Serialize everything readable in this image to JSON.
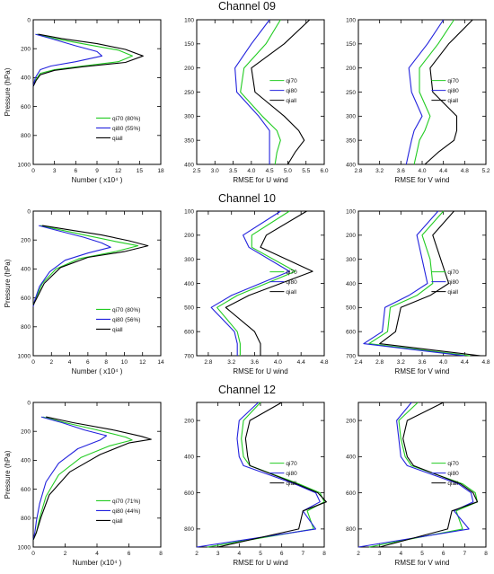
{
  "figure": {
    "rows": [
      {
        "title": "Channel 09"
      },
      {
        "title": "Channel 10"
      },
      {
        "title": "Channel 12"
      }
    ]
  },
  "colors": {
    "qi70": "#22cc22",
    "qi80": "#2222dd",
    "qiall": "#000000"
  },
  "chart_data": [
    {
      "type": "line",
      "title": "Channel 09",
      "xlabel": "Number ( x10⁴ )",
      "ylabel": "Pressure (hPa)",
      "xlim": [
        0,
        18
      ],
      "ylim": [
        1000,
        0
      ],
      "xticks": [
        0,
        3,
        6,
        9,
        12,
        15,
        18
      ],
      "yticks": [
        0,
        200,
        400,
        600,
        800,
        1000
      ],
      "series": [
        {
          "name": "qi70 (80%)",
          "color": "#22cc22",
          "x": [
            0.5,
            3,
            7.5,
            12,
            14,
            12,
            7,
            3,
            1,
            0.3,
            0
          ],
          "y": [
            100,
            130,
            170,
            210,
            250,
            290,
            320,
            345,
            370,
            420,
            460
          ]
        },
        {
          "name": "qi80 (55%)",
          "color": "#2222dd",
          "x": [
            0.3,
            2.5,
            6,
            9,
            9.7,
            6,
            2.5,
            1,
            0.3,
            0
          ],
          "y": [
            100,
            130,
            180,
            220,
            250,
            290,
            320,
            345,
            400,
            460
          ]
        },
        {
          "name": "qiall",
          "color": "#000000",
          "x": [
            0.7,
            4,
            9,
            13,
            15.5,
            13,
            7,
            3,
            1,
            0.4,
            0
          ],
          "y": [
            100,
            130,
            165,
            205,
            250,
            295,
            325,
            350,
            380,
            420,
            460
          ]
        }
      ]
    },
    {
      "type": "line",
      "xlabel": "RMSE for U wind",
      "ylabel": "",
      "xlim": [
        2.5,
        6.0
      ],
      "ylim": [
        400,
        100
      ],
      "xticks": [
        2.5,
        3.0,
        3.5,
        4.0,
        4.5,
        5.0,
        5.5,
        6.0
      ],
      "yticks": [
        100,
        150,
        200,
        250,
        300,
        350,
        400
      ],
      "series": [
        {
          "name": "qi70",
          "color": "#22cc22",
          "x": [
            4.8,
            4.4,
            3.8,
            3.7,
            4.3,
            4.7,
            4.8,
            4.7,
            4.65
          ],
          "y": [
            100,
            150,
            200,
            250,
            300,
            330,
            350,
            375,
            400
          ]
        },
        {
          "name": "qi80",
          "color": "#2222dd",
          "x": [
            4.5,
            4.0,
            3.55,
            3.6,
            4.2,
            4.5,
            4.5,
            4.5,
            4.5
          ],
          "y": [
            100,
            150,
            200,
            250,
            300,
            330,
            350,
            375,
            400
          ]
        },
        {
          "name": "qiall",
          "color": "#000000",
          "x": [
            5.6,
            4.9,
            4.0,
            4.1,
            4.9,
            5.3,
            5.45,
            5.2,
            5.0
          ],
          "y": [
            100,
            150,
            200,
            250,
            300,
            330,
            350,
            375,
            400
          ]
        }
      ]
    },
    {
      "type": "line",
      "xlabel": "RMSE for V wind",
      "ylabel": "",
      "xlim": [
        2.8,
        5.2
      ],
      "ylim": [
        400,
        100
      ],
      "xticks": [
        2.8,
        3.2,
        3.6,
        4.0,
        4.4,
        4.8,
        5.2
      ],
      "yticks": [
        100,
        150,
        200,
        250,
        300,
        350,
        400
      ],
      "series": [
        {
          "name": "qi70",
          "color": "#22cc22",
          "x": [
            4.6,
            4.3,
            3.95,
            3.95,
            4.15,
            4.05,
            3.95,
            3.9,
            3.85
          ],
          "y": [
            100,
            150,
            200,
            250,
            300,
            330,
            350,
            375,
            400
          ]
        },
        {
          "name": "qi80",
          "color": "#2222dd",
          "x": [
            4.4,
            4.1,
            3.75,
            3.8,
            4.0,
            3.85,
            3.8,
            3.75,
            3.7
          ],
          "y": [
            100,
            150,
            200,
            250,
            300,
            330,
            350,
            375,
            400
          ]
        },
        {
          "name": "qiall",
          "color": "#000000",
          "x": [
            4.95,
            4.5,
            4.15,
            4.2,
            4.65,
            4.65,
            4.6,
            4.3,
            4.05
          ],
          "y": [
            100,
            150,
            200,
            250,
            300,
            330,
            350,
            375,
            400
          ]
        }
      ]
    },
    {
      "type": "line",
      "title": "Channel 10",
      "xlabel": "Number ( x10⁴ )",
      "ylabel": "Pressure (hPa)",
      "xlim": [
        0,
        14
      ],
      "ylim": [
        1000,
        0
      ],
      "xticks": [
        0,
        2,
        4,
        6,
        8,
        10,
        12,
        14
      ],
      "yticks": [
        0,
        200,
        400,
        600,
        800,
        1000
      ],
      "series": [
        {
          "name": "qi70 (80%)",
          "color": "#22cc22",
          "x": [
            0.8,
            3,
            6,
            9,
            11.5,
            9,
            5,
            2.5,
            1,
            0.3,
            0
          ],
          "y": [
            100,
            130,
            170,
            210,
            240,
            280,
            330,
            400,
            500,
            600,
            650
          ]
        },
        {
          "name": "qi80 (56%)",
          "color": "#2222dd",
          "x": [
            0.6,
            3,
            5.5,
            7.5,
            8.5,
            6,
            3.5,
            1.8,
            0.7,
            0.2,
            0
          ],
          "y": [
            100,
            140,
            180,
            220,
            250,
            290,
            340,
            420,
            520,
            610,
            660
          ]
        },
        {
          "name": "qiall",
          "color": "#000000",
          "x": [
            1,
            4,
            7.5,
            10.5,
            12.6,
            10,
            6,
            3,
            1.2,
            0.4,
            0
          ],
          "y": [
            100,
            130,
            165,
            205,
            240,
            280,
            320,
            390,
            500,
            600,
            650
          ]
        }
      ]
    },
    {
      "type": "line",
      "xlabel": "RMSE for U wind",
      "ylabel": "",
      "xlim": [
        2.6,
        4.8
      ],
      "ylim": [
        700,
        100
      ],
      "xticks": [
        2.8,
        3.2,
        3.6,
        4.0,
        4.4,
        4.8
      ],
      "yticks": [
        100,
        200,
        300,
        400,
        500,
        600,
        700
      ],
      "series": [
        {
          "name": "qi70",
          "color": "#22cc22",
          "x": [
            4.2,
            3.55,
            3.55,
            4.3,
            3.3,
            2.95,
            3.3,
            3.35,
            3.35
          ],
          "y": [
            100,
            200,
            250,
            350,
            450,
            500,
            600,
            650,
            700
          ]
        },
        {
          "name": "qi80",
          "color": "#2222dd",
          "x": [
            4.05,
            3.4,
            3.5,
            4.2,
            3.2,
            2.85,
            3.25,
            3.3,
            3.3
          ],
          "y": [
            100,
            200,
            250,
            350,
            450,
            500,
            600,
            650,
            700
          ]
        },
        {
          "name": "qiall",
          "color": "#000000",
          "x": [
            4.5,
            3.8,
            3.7,
            4.6,
            3.5,
            3.1,
            3.6,
            3.7,
            3.7
          ],
          "y": [
            100,
            200,
            250,
            350,
            450,
            500,
            600,
            650,
            700
          ]
        }
      ]
    },
    {
      "type": "line",
      "xlabel": "RMSE for V wind",
      "ylabel": "",
      "xlim": [
        2.4,
        4.8
      ],
      "ylim": [
        700,
        100
      ],
      "xticks": [
        2.4,
        2.8,
        3.2,
        3.6,
        4.0,
        4.4,
        4.8
      ],
      "yticks": [
        100,
        200,
        300,
        400,
        500,
        600,
        700
      ],
      "series": [
        {
          "name": "qi70",
          "color": "#22cc22",
          "x": [
            4.0,
            3.6,
            3.75,
            3.8,
            3.5,
            3.0,
            2.95,
            2.6,
            4.5
          ],
          "y": [
            100,
            200,
            300,
            400,
            450,
            500,
            600,
            650,
            700
          ]
        },
        {
          "name": "qi80",
          "color": "#2222dd",
          "x": [
            3.9,
            3.5,
            3.6,
            3.7,
            3.35,
            2.9,
            2.85,
            2.5,
            4.4
          ],
          "y": [
            100,
            200,
            300,
            400,
            450,
            500,
            600,
            650,
            700
          ]
        },
        {
          "name": "qiall",
          "color": "#000000",
          "x": [
            4.2,
            3.8,
            3.95,
            4.1,
            3.75,
            3.2,
            3.1,
            2.8,
            4.7
          ],
          "y": [
            100,
            200,
            300,
            400,
            450,
            500,
            600,
            650,
            700
          ]
        }
      ]
    },
    {
      "type": "line",
      "title": "Channel 12",
      "xlabel": "Number (x10⁴ )",
      "ylabel": "Pressure (hPa)",
      "xlim": [
        0,
        8
      ],
      "ylim": [
        1000,
        0
      ],
      "xticks": [
        0,
        2,
        4,
        6,
        8
      ],
      "yticks": [
        0,
        200,
        400,
        600,
        800,
        1000
      ],
      "series": [
        {
          "name": "qi70 (71%)",
          "color": "#22cc22",
          "x": [
            0.6,
            2,
            4,
            5.8,
            6.2,
            4.8,
            3,
            1.6,
            0.8,
            0.4,
            0.2,
            0
          ],
          "y": [
            100,
            140,
            190,
            240,
            260,
            300,
            380,
            500,
            650,
            800,
            900,
            950
          ]
        },
        {
          "name": "qi80 (44%)",
          "color": "#2222dd",
          "x": [
            0.5,
            1.8,
            3.2,
            4.6,
            4.2,
            2.8,
            1.6,
            0.8,
            0.4,
            0.2,
            0.1,
            0
          ],
          "y": [
            100,
            140,
            190,
            230,
            260,
            320,
            420,
            550,
            700,
            820,
            900,
            950
          ]
        },
        {
          "name": "qiall",
          "color": "#000000",
          "x": [
            0.8,
            2.5,
            5,
            6.8,
            7.4,
            6,
            4.2,
            2.3,
            1,
            0.5,
            0.2,
            0
          ],
          "y": [
            100,
            140,
            190,
            235,
            255,
            280,
            360,
            480,
            640,
            790,
            900,
            950
          ]
        }
      ]
    },
    {
      "type": "line",
      "xlabel": "RMSE for U wind",
      "ylabel": "",
      "xlim": [
        2.0,
        8.0
      ],
      "ylim": [
        900,
        100
      ],
      "xticks": [
        2.0,
        3.0,
        4.0,
        5.0,
        6.0,
        7.0,
        8.0
      ],
      "yticks": [
        200,
        400,
        600,
        800
      ],
      "series": [
        {
          "name": "qi70",
          "color": "#22cc22",
          "x": [
            5.0,
            4.2,
            4.1,
            4.2,
            4.5,
            6.8,
            7.8,
            8.0,
            7.2,
            7.5,
            2.5
          ],
          "y": [
            100,
            200,
            300,
            400,
            450,
            550,
            600,
            650,
            700,
            800,
            900
          ]
        },
        {
          "name": "qi80",
          "color": "#2222dd",
          "x": [
            4.9,
            4.0,
            3.9,
            4.0,
            4.2,
            6.6,
            7.6,
            7.8,
            7.0,
            7.6,
            2.0
          ],
          "y": [
            100,
            200,
            300,
            400,
            450,
            550,
            600,
            650,
            700,
            800,
            900
          ]
        },
        {
          "name": "qiall",
          "color": "#000000",
          "x": [
            6.0,
            4.5,
            4.3,
            4.4,
            4.5,
            6.7,
            7.7,
            8.1,
            7.0,
            6.8,
            3.0
          ],
          "y": [
            100,
            200,
            300,
            400,
            450,
            550,
            600,
            650,
            700,
            800,
            900
          ]
        }
      ]
    },
    {
      "type": "line",
      "xlabel": "RMSE for V wind",
      "ylabel": "",
      "xlim": [
        2.0,
        8.0
      ],
      "ylim": [
        900,
        100
      ],
      "xticks": [
        2.0,
        3.0,
        4.0,
        5.0,
        6.0,
        7.0,
        8.0
      ],
      "yticks": [
        200,
        400,
        600,
        800
      ],
      "series": [
        {
          "name": "qi70",
          "color": "#22cc22",
          "x": [
            4.8,
            3.9,
            4.0,
            4.2,
            4.5,
            6.9,
            7.5,
            7.6,
            6.6,
            6.9,
            2.5
          ],
          "y": [
            100,
            200,
            300,
            400,
            450,
            550,
            600,
            650,
            700,
            800,
            900
          ]
        },
        {
          "name": "qi80",
          "color": "#2222dd",
          "x": [
            4.5,
            3.8,
            3.9,
            4.0,
            4.3,
            6.7,
            7.3,
            7.4,
            6.5,
            7.2,
            2.0
          ],
          "y": [
            100,
            200,
            300,
            400,
            450,
            550,
            600,
            650,
            700,
            800,
            900
          ]
        },
        {
          "name": "qiall",
          "color": "#000000",
          "x": [
            6.0,
            4.3,
            4.1,
            4.3,
            4.6,
            6.8,
            7.4,
            7.6,
            6.4,
            6.2,
            3.0
          ],
          "y": [
            100,
            200,
            300,
            400,
            450,
            550,
            600,
            650,
            700,
            800,
            900
          ]
        }
      ]
    }
  ]
}
